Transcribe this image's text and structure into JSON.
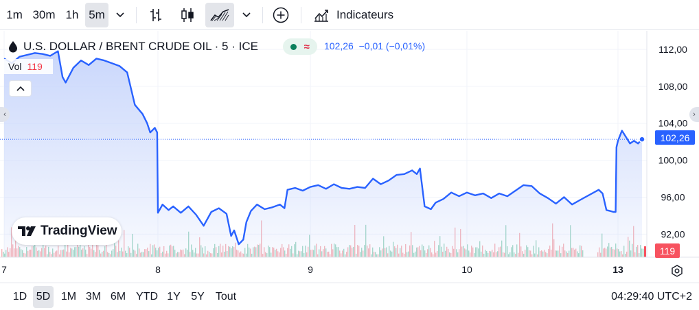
{
  "toolbar": {
    "intervals": [
      {
        "label": "1m",
        "active": false
      },
      {
        "label": "30m",
        "active": false
      },
      {
        "label": "1h",
        "active": false
      },
      {
        "label": "5m",
        "active": true
      }
    ],
    "chart_type_icons": [
      "bars-icon",
      "candles-icon",
      "area-icon"
    ],
    "active_chart_type": "area-icon",
    "indicators_label": "Indicateurs"
  },
  "legend": {
    "symbol": "U.S. DOLLAR / BRENT CRUDE OIL · 5 · ICE",
    "last_price": "102,26",
    "change": "−0,01 (−0,01%)",
    "vol_label": "Vol",
    "vol_value": "119"
  },
  "watermark": "TradingView",
  "price_tag": "102,26",
  "volume_tag": "119",
  "range_bar": {
    "ranges": [
      {
        "label": "1D",
        "active": false
      },
      {
        "label": "5D",
        "active": true
      },
      {
        "label": "1M",
        "active": false
      },
      {
        "label": "3M",
        "active": false
      },
      {
        "label": "6M",
        "active": false
      },
      {
        "label": "YTD",
        "active": false
      },
      {
        "label": "1Y",
        "active": false
      },
      {
        "label": "5Y",
        "active": false
      },
      {
        "label": "Tout",
        "active": false
      }
    ],
    "clock": "04:29:40 UTC+2"
  },
  "colors": {
    "line": "#2962ff",
    "area_top": "#c7d5fb",
    "vol_up": "#8fd0b8",
    "vol_down": "#f5a3a8",
    "last_vol": "#f7525f",
    "grid": "#f0f3fa"
  },
  "chart_data": {
    "type": "area",
    "title": "U.S. DOLLAR / BRENT CRUDE OIL · 5 · ICE",
    "xlabel": "",
    "ylabel": "",
    "grid": true,
    "ylim": [
      89.5,
      114.0
    ],
    "y_ticks": [
      92,
      96,
      100,
      104,
      108,
      112
    ],
    "y_tick_labels": [
      "92,00",
      "96,00",
      "100,00",
      "104,00",
      "108,00",
      "112,00"
    ],
    "x_domain": [
      6.96,
      13.36
    ],
    "x_ticks": [
      {
        "x": 7.0,
        "label": "7"
      },
      {
        "x": 8.0,
        "label": "8"
      },
      {
        "x": 9.0,
        "label": "9"
      },
      {
        "x": 10.0,
        "label": "10"
      },
      {
        "x": 13.0,
        "label": "13"
      }
    ],
    "last_value": 102.26,
    "series": [
      {
        "x": [
          7.0,
          7.05,
          7.1,
          7.15,
          7.2,
          7.25,
          7.3,
          7.35,
          7.38,
          7.4,
          7.45,
          7.5,
          7.55,
          7.6,
          7.65,
          7.7,
          7.75,
          7.8,
          7.85,
          7.9,
          7.93,
          7.95,
          7.98,
          7.995,
          8.0,
          8.03,
          8.07,
          8.1,
          8.15,
          8.2,
          8.25,
          8.3,
          8.35,
          8.4,
          8.45,
          8.48,
          8.5,
          8.53,
          8.56,
          8.58,
          8.61,
          8.65,
          8.7,
          8.75,
          8.8,
          8.83,
          8.85,
          8.9,
          8.95,
          9.0,
          9.05,
          9.1,
          9.15,
          9.2,
          9.25,
          9.3,
          9.35,
          9.4,
          9.45,
          9.5,
          9.55,
          9.6,
          9.65,
          9.68,
          9.7,
          9.73,
          9.77,
          9.8,
          9.85,
          9.9,
          9.95,
          10.0,
          10.05,
          10.1,
          10.15,
          10.2,
          10.25,
          10.3,
          10.35,
          10.4,
          10.45,
          10.5,
          10.55,
          10.6,
          10.65,
          10.7,
          12.75,
          12.8,
          12.85,
          12.9,
          12.94,
          12.97,
          12.98,
          13.0,
          13.05,
          13.1,
          13.15,
          13.2,
          13.25,
          13.3
        ],
        "values": [
          111.0,
          110.5,
          111.2,
          111.4,
          111.6,
          111.5,
          111.3,
          111.8,
          109.0,
          108.4,
          110.0,
          110.8,
          110.3,
          111.0,
          110.8,
          110.5,
          110.2,
          109.5,
          106.0,
          105.0,
          104.0,
          103.0,
          103.5,
          103.0,
          94.3,
          95.2,
          94.6,
          95.0,
          94.3,
          95.0,
          94.1,
          92.9,
          94.4,
          94.8,
          94.2,
          91.8,
          92.4,
          90.9,
          91.4,
          93.3,
          94.5,
          95.2,
          94.7,
          94.9,
          95.2,
          94.8,
          96.8,
          97.0,
          96.7,
          97.1,
          97.3,
          96.9,
          97.4,
          97.0,
          96.9,
          97.1,
          97.0,
          98.0,
          97.4,
          97.8,
          98.4,
          98.5,
          98.9,
          98.5,
          99.1,
          95.0,
          94.7,
          95.4,
          95.8,
          96.5,
          96.1,
          96.5,
          96.2,
          96.4,
          95.9,
          96.4,
          96.1,
          96.7,
          97.3,
          97.2,
          96.4,
          95.9,
          95.3,
          96.0,
          95.2,
          95.7,
          96.8,
          96.4,
          94.6,
          94.5,
          94.4,
          94.4,
          101.4,
          102.1,
          103.2,
          102.5,
          101.8,
          102.1,
          101.8,
          102.26
        ]
      }
    ],
    "volume_scale_max": 300,
    "last_volume": 119
  }
}
